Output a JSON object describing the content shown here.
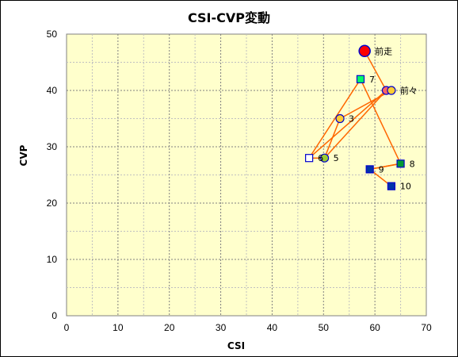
{
  "chart_data": {
    "type": "scatter",
    "title": "CSI-CVP変動",
    "xlabel": "CSI",
    "ylabel": "CVP",
    "xlim": [
      0,
      70
    ],
    "ylim": [
      0,
      50
    ],
    "xticks": [
      0,
      10,
      20,
      30,
      40,
      50,
      60,
      70
    ],
    "yticks": [
      0,
      10,
      20,
      30,
      40,
      50
    ],
    "grid": true,
    "colors": {
      "plot_bg": "#ffffcc",
      "line": "#ff6600",
      "grid_major": "#808080",
      "grid_minor": "#c0c0c0"
    },
    "points": [
      {
        "label": "前走",
        "x": 58.0,
        "y": 47.0,
        "shape": "circle-large",
        "fill": "#ff0000",
        "stroke": "#0000cc"
      },
      {
        "label": "",
        "x": 62.2,
        "y": 40.0,
        "shape": "circle",
        "fill": "#ff6666",
        "stroke": "#0000cc"
      },
      {
        "label": "前々",
        "x": 63.2,
        "y": 40.0,
        "shape": "circle",
        "fill": "#ffcc33",
        "stroke": "#0000cc"
      },
      {
        "label": "3",
        "x": 53.2,
        "y": 35.0,
        "shape": "circle",
        "fill": "#ffcc33",
        "stroke": "#0000cc"
      },
      {
        "label": "5",
        "x": 50.2,
        "y": 28.0,
        "shape": "circle",
        "fill": "#99cc33",
        "stroke": "#0000cc"
      },
      {
        "label": "6",
        "x": 47.2,
        "y": 28.0,
        "shape": "square",
        "fill": "#ffffff",
        "stroke": "#0000cc"
      },
      {
        "label": "7",
        "x": 57.2,
        "y": 42.0,
        "shape": "square",
        "fill": "#00ff66",
        "stroke": "#0000cc"
      },
      {
        "label": "8",
        "x": 65.0,
        "y": 27.0,
        "shape": "square",
        "fill": "#009933",
        "stroke": "#0000cc"
      },
      {
        "label": "9",
        "x": 59.0,
        "y": 26.0,
        "shape": "square",
        "fill": "#0033aa",
        "stroke": "#0000cc"
      },
      {
        "label": "10",
        "x": 63.2,
        "y": 23.0,
        "shape": "square",
        "fill": "#0033aa",
        "stroke": "#0000cc"
      }
    ],
    "path": [
      [
        58.0,
        47.0
      ],
      [
        62.2,
        40.0
      ],
      [
        63.2,
        40.0
      ],
      [
        53.2,
        35.0
      ],
      [
        50.2,
        28.0
      ],
      [
        47.2,
        28.0
      ],
      [
        57.2,
        42.0
      ],
      [
        65.0,
        27.0
      ],
      [
        59.0,
        26.0
      ],
      [
        63.2,
        23.0
      ]
    ],
    "extra_segments": [
      [
        [
          62.2,
          40.0
        ],
        [
          47.2,
          28.0
        ]
      ],
      [
        [
          62.2,
          40.0
        ],
        [
          50.2,
          28.0
        ]
      ],
      [
        [
          59.0,
          26.0
        ],
        [
          65.0,
          27.0
        ]
      ]
    ]
  }
}
